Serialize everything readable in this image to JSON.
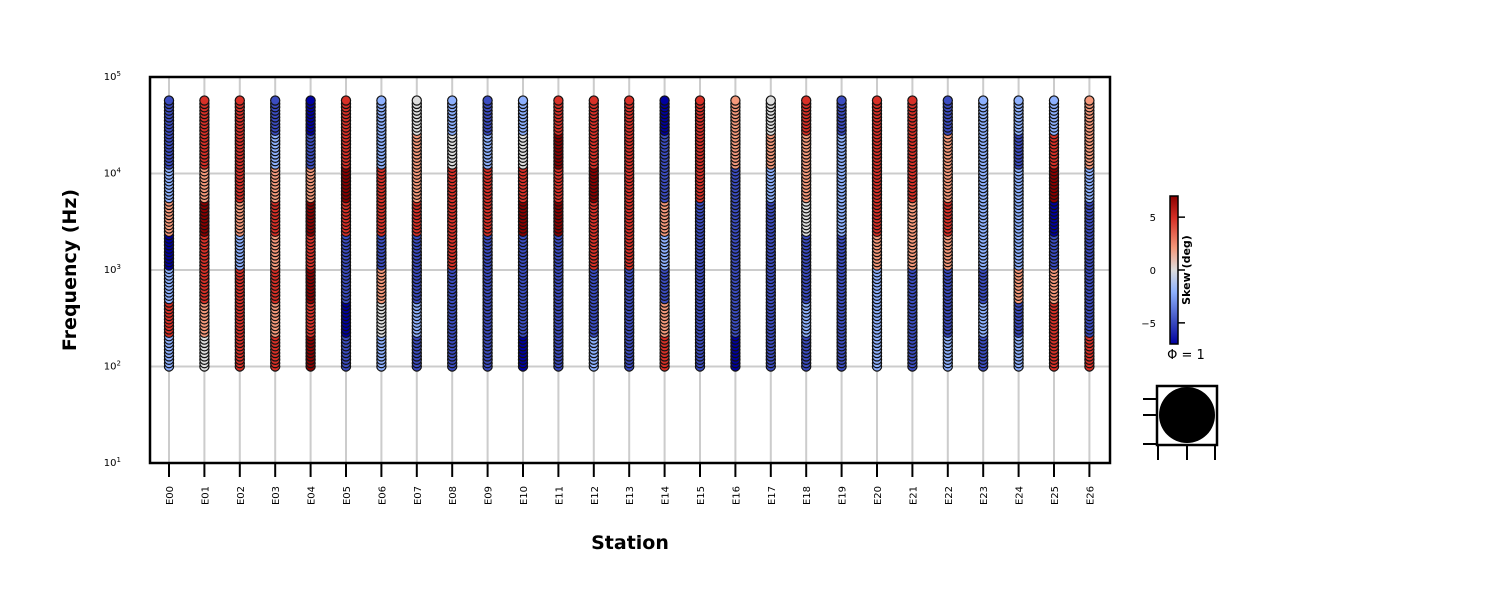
{
  "chart_data": {
    "type": "scatter",
    "title": "",
    "xlabel": "Station",
    "ylabel": "Frequency (Hz)",
    "y_scale": "log",
    "ylim": [
      10,
      100000
    ],
    "y_ticks": [
      {
        "value": 10,
        "base": "10",
        "exp": "1"
      },
      {
        "value": 100,
        "base": "10",
        "exp": "2"
      },
      {
        "value": 1000,
        "base": "10",
        "exp": "3"
      },
      {
        "value": 10000,
        "base": "10",
        "exp": "4"
      },
      {
        "value": 100000,
        "base": "10",
        "exp": "5"
      }
    ],
    "grid": true,
    "categories": [
      "E00",
      "E01",
      "E02",
      "E03",
      "E04",
      "E05",
      "E06",
      "E07",
      "E08",
      "E09",
      "E10",
      "E11",
      "E12",
      "E13",
      "E14",
      "E15",
      "E16",
      "E17",
      "E18",
      "E19",
      "E20",
      "E21",
      "E22",
      "E23",
      "E24",
      "E25",
      "E26"
    ],
    "frequency_range_hz": [
      100,
      57000
    ],
    "colorbar": {
      "label": "Skew (deg)",
      "range": [
        -7,
        7
      ],
      "ticks": [
        {
          "value": 5,
          "label": "5"
        },
        {
          "value": 0,
          "label": "0"
        },
        {
          "value": -5,
          "label": "−5"
        }
      ],
      "colormap": "coolwarm",
      "colors": [
        "#0000a0",
        "#3b4cc0",
        "#8db0fe",
        "#dddddd",
        "#f4987a",
        "#d73027",
        "#8b0000"
      ]
    },
    "shape_legend": {
      "label": "Φ = 1"
    },
    "series_skew": [
      {
        "station": "E00",
        "skew_by_band": [
          -3,
          4,
          -2,
          -6,
          2,
          -3,
          -5,
          -4
        ]
      },
      {
        "station": "E01",
        "skew_by_band": [
          1,
          3,
          5,
          4,
          6,
          2,
          5,
          4
        ]
      },
      {
        "station": "E02",
        "skew_by_band": [
          5,
          4,
          5,
          -2,
          3,
          4,
          5,
          4
        ]
      },
      {
        "station": "E03",
        "skew_by_band": [
          4,
          3,
          5,
          2,
          5,
          3,
          -3,
          -5
        ]
      },
      {
        "station": "E04",
        "skew_by_band": [
          6,
          5,
          6,
          4,
          6,
          2,
          -5,
          -6
        ]
      },
      {
        "station": "E05",
        "skew_by_band": [
          -5,
          -6,
          -5,
          -4,
          5,
          6,
          5,
          4
        ]
      },
      {
        "station": "E06",
        "skew_by_band": [
          -2,
          1,
          3,
          -5,
          5,
          4,
          -2,
          -3
        ]
      },
      {
        "station": "E07",
        "skew_by_band": [
          -4,
          -3,
          -5,
          -5,
          5,
          3,
          2,
          1
        ]
      },
      {
        "station": "E08",
        "skew_by_band": [
          -5,
          -4,
          -5,
          5,
          5,
          4,
          1,
          -3
        ]
      },
      {
        "station": "E09",
        "skew_by_band": [
          -4,
          -5,
          -4,
          -5,
          5,
          4,
          -3,
          -4
        ]
      },
      {
        "station": "E10",
        "skew_by_band": [
          -6,
          -5,
          -4,
          -5,
          6,
          5,
          -1,
          -2
        ]
      },
      {
        "station": "E11",
        "skew_by_band": [
          -4,
          -5,
          -4,
          -5,
          6,
          5,
          6,
          5
        ]
      },
      {
        "station": "E12",
        "skew_by_band": [
          -3,
          -4,
          -5,
          4,
          5,
          6,
          5,
          4
        ]
      },
      {
        "station": "E13",
        "skew_by_band": [
          -5,
          -4,
          -5,
          4,
          5,
          4,
          5,
          4
        ]
      },
      {
        "station": "E14",
        "skew_by_band": [
          5,
          2,
          -5,
          -3,
          2,
          -4,
          -5,
          -6
        ]
      },
      {
        "station": "E15",
        "skew_by_band": [
          -5,
          -4,
          -4,
          -5,
          -5,
          4,
          5,
          5
        ]
      },
      {
        "station": "E16",
        "skew_by_band": [
          -6,
          -5,
          -5,
          -5,
          -5,
          -4,
          2,
          3
        ]
      },
      {
        "station": "E17",
        "skew_by_band": [
          -5,
          -4,
          -5,
          -5,
          -4,
          -3,
          2,
          1
        ]
      },
      {
        "station": "E18",
        "skew_by_band": [
          -4,
          -3,
          -4,
          -5,
          1,
          2,
          3,
          4
        ]
      },
      {
        "station": "E19",
        "skew_by_band": [
          -5,
          -4,
          -5,
          -4,
          -3,
          -3,
          -2,
          -4
        ]
      },
      {
        "station": "E20",
        "skew_by_band": [
          -3,
          -3,
          -2,
          2,
          4,
          5,
          4,
          5
        ]
      },
      {
        "station": "E21",
        "skew_by_band": [
          -5,
          -4,
          -5,
          2,
          3,
          4,
          5,
          4
        ]
      },
      {
        "station": "E22",
        "skew_by_band": [
          -3,
          -4,
          -5,
          3,
          4,
          3,
          2,
          -4
        ]
      },
      {
        "station": "E23",
        "skew_by_band": [
          -4,
          -3,
          -4,
          -3,
          -3,
          -2,
          -2,
          -2
        ]
      },
      {
        "station": "E24",
        "skew_by_band": [
          -3,
          -4,
          3,
          -3,
          -2,
          -3,
          -4,
          -3
        ]
      },
      {
        "station": "E25",
        "skew_by_band": [
          5,
          4,
          3,
          -5,
          -6,
          6,
          5,
          -3
        ]
      },
      {
        "station": "E26",
        "skew_by_band": [
          5,
          -4,
          -5,
          -5,
          -4,
          -3,
          3,
          2
        ]
      }
    ]
  }
}
